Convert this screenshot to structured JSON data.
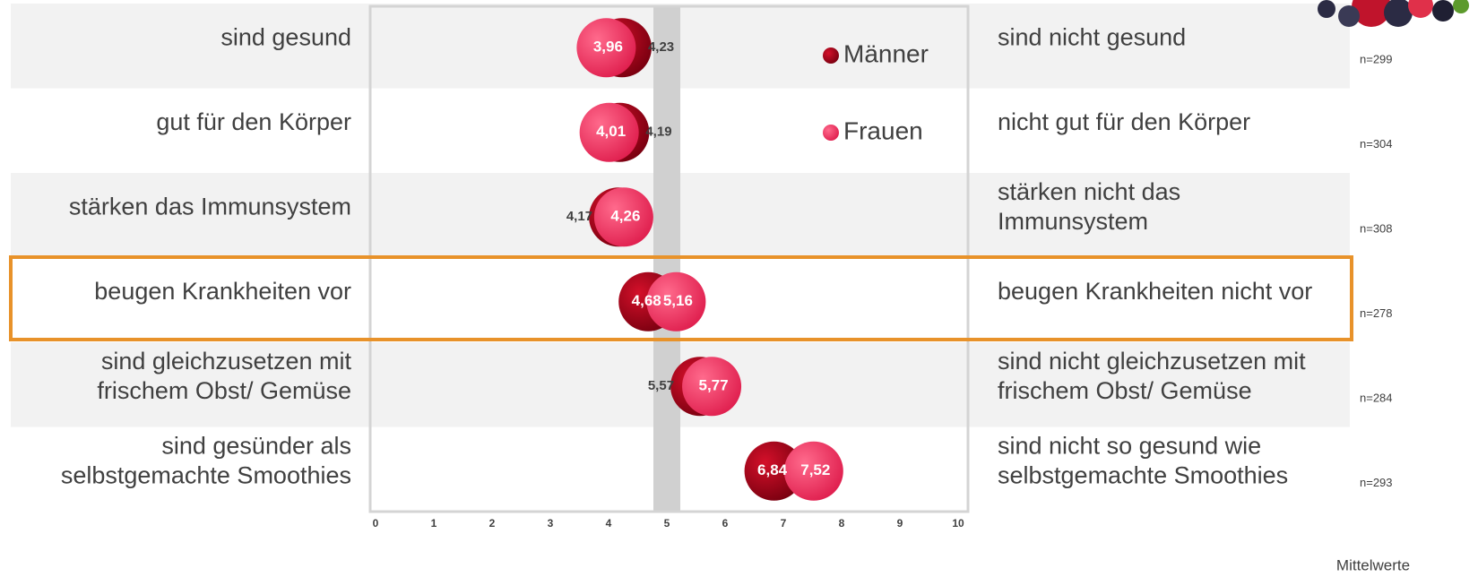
{
  "chart_data": {
    "type": "dot",
    "categories": [
      [
        "sind gesund"
      ],
      [
        "gut für den Körper"
      ],
      [
        "stärken das Immunsystem"
      ],
      [
        "beugen Krankheiten vor"
      ],
      [
        "sind gleichzusetzen mit",
        "frischem Obst/ Gemüse"
      ],
      [
        "sind gesünder als",
        "selbstgemachte Smoothies"
      ]
    ],
    "right_labels": [
      [
        "sind nicht gesund"
      ],
      [
        "nicht gut für den Körper"
      ],
      [
        "stärken nicht das",
        "Immunsystem"
      ],
      [
        "beugen Krankheiten nicht vor"
      ],
      [
        "sind nicht gleichzusetzen mit",
        "frischem Obst/ Gemüse"
      ],
      [
        "sind nicht so gesund wie",
        "selbstgemachte Smoothies"
      ]
    ],
    "n_labels": [
      "n=299",
      "n=304",
      "n=308",
      "n=278",
      "n=284",
      "n=293"
    ],
    "series": [
      {
        "name": "Männer",
        "color": "#b00012",
        "values": [
          4.23,
          4.19,
          4.17,
          4.68,
          5.57,
          6.84
        ],
        "value_labels": [
          "4,23",
          "4,19",
          "4,17",
          "4,68",
          "5,57",
          "6,84"
        ]
      },
      {
        "name": "Frauen",
        "color": "#ff3366",
        "values": [
          3.96,
          4.01,
          4.26,
          5.16,
          5.77,
          7.52
        ],
        "value_labels": [
          "3,96",
          "4,01",
          "4,26",
          "5,16",
          "5,77",
          "7,52"
        ]
      }
    ],
    "xlim": [
      0,
      10
    ],
    "xticks": [
      0,
      1,
      2,
      3,
      4,
      5,
      6,
      7,
      8,
      9,
      10
    ],
    "note": "Mittelwerte"
  }
}
